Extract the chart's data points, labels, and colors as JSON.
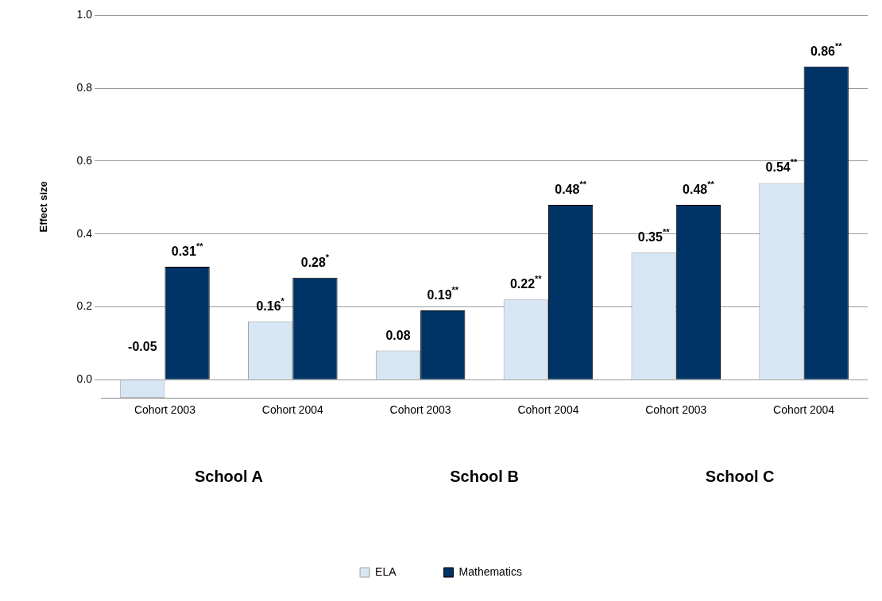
{
  "chart_data": {
    "type": "bar",
    "ylabel": "Effect size",
    "categories": [
      "Cohort 2003",
      "Cohort 2004",
      "Cohort 2003",
      "Cohort 2004",
      "Cohort 2003",
      "Cohort 2004"
    ],
    "series": [
      {
        "name": "ELA",
        "color": "#d6e6f4",
        "values": [
          -0.05,
          0.16,
          0.08,
          0.22,
          0.35,
          0.54
        ],
        "value_labels": [
          "-0.05",
          "0.16$^{*}$",
          "0.08",
          "0.22$^{**}$",
          "0.35$^{**}$",
          "0.54$^{**}$"
        ]
      },
      {
        "name": "Mathematics",
        "color": "#003366",
        "values": [
          0.31,
          0.28,
          0.19,
          0.48,
          0.48,
          0.86
        ],
        "value_labels": [
          "0.31$^{**}$",
          "0.28$^{*}$",
          "0.19$^{**}$",
          "0.48$^{**}$",
          "0.48$^{**}$",
          "0.86$^{**}$"
        ]
      }
    ],
    "ylim": [
      -0.05,
      1.0
    ],
    "yticks": [
      {
        "value": 0,
        "label": "0.0"
      },
      {
        "value": 0.2,
        "label": "0.2"
      },
      {
        "value": 0.4,
        "label": "0.4"
      },
      {
        "value": 0.6,
        "label": "0.6"
      },
      {
        "value": 0.8,
        "label": "0.8"
      },
      {
        "value": 1,
        "label": "1.0"
      }
    ],
    "grid": "y",
    "legend": "bottom",
    "annotations": [
      "School A",
      "School B",
      "School C"
    ]
  }
}
